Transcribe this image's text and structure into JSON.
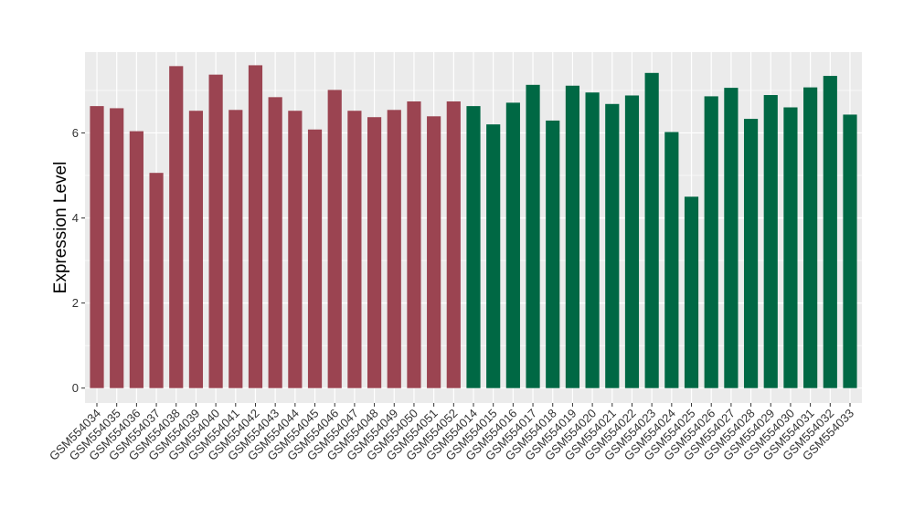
{
  "chart_data": {
    "type": "bar",
    "title": "",
    "xlabel": "",
    "ylabel": "Expression Level",
    "ylim": [
      -0.35,
      7.9
    ],
    "yticks": [
      0,
      2,
      4,
      6
    ],
    "grid": true,
    "legend": "none",
    "categories": [
      "GSM554034",
      "GSM554035",
      "GSM554036",
      "GSM554037",
      "GSM554038",
      "GSM554039",
      "GSM554040",
      "GSM554041",
      "GSM554042",
      "GSM554043",
      "GSM554044",
      "GSM554045",
      "GSM554046",
      "GSM554047",
      "GSM554048",
      "GSM554049",
      "GSM554050",
      "GSM554051",
      "GSM554052",
      "GSM554014",
      "GSM554015",
      "GSM554016",
      "GSM554017",
      "GSM554018",
      "GSM554019",
      "GSM554020",
      "GSM554021",
      "GSM554022",
      "GSM554023",
      "GSM554024",
      "GSM554025",
      "GSM554026",
      "GSM554027",
      "GSM554028",
      "GSM554029",
      "GSM554030",
      "GSM554031",
      "GSM554032",
      "GSM554033"
    ],
    "values": [
      6.63,
      6.58,
      6.04,
      5.06,
      7.57,
      6.52,
      7.37,
      6.54,
      7.59,
      6.84,
      6.52,
      6.08,
      7.01,
      6.52,
      6.37,
      6.54,
      6.74,
      6.39,
      6.74,
      6.63,
      6.2,
      6.71,
      7.13,
      6.29,
      7.11,
      6.95,
      6.68,
      6.88,
      7.41,
      6.02,
      4.5,
      6.86,
      7.06,
      6.33,
      6.89,
      6.6,
      7.07,
      7.34,
      6.43
    ],
    "groups": [
      0,
      0,
      0,
      0,
      0,
      0,
      0,
      0,
      0,
      0,
      0,
      0,
      0,
      0,
      0,
      0,
      0,
      0,
      0,
      1,
      1,
      1,
      1,
      1,
      1,
      1,
      1,
      1,
      1,
      1,
      1,
      1,
      1,
      1,
      1,
      1,
      1,
      1,
      1
    ],
    "group_colors": [
      "#9b4451",
      "#006844"
    ],
    "panel_color": "#ebebeb",
    "grid_color": "#ffffff"
  }
}
